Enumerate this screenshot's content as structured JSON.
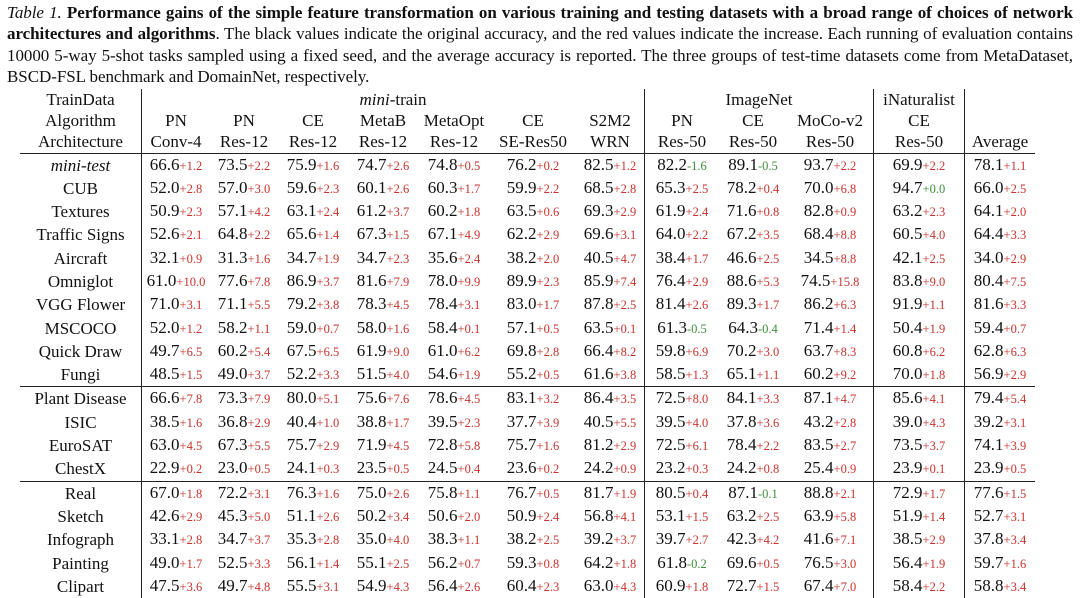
{
  "caption": {
    "label": "Table 1.",
    "bold": "Performance gains of the simple feature transformation on various training and testing datasets with a broad range of choices of network architectures and algorithms",
    "rest": ". The black values indicate the original accuracy, and the red values indicate the increase. Each running of evaluation contains 10000 5-way 5-shot tasks sampled using a fixed seed, and the average accuracy is reported. The three groups of test-time datasets come from MetaDataset, BSCD-FSL benchmark and DomainNet, respectively."
  },
  "header": {
    "row_labels": [
      "TrainData",
      "Algorithm",
      "Architecture"
    ],
    "groups": [
      {
        "name": "mini",
        "suffix": "-train",
        "span": 7
      },
      {
        "name": "ImageNet",
        "suffix": "",
        "span": 3
      },
      {
        "name": "iNaturalist",
        "suffix": "",
        "span": 1
      }
    ],
    "columns": [
      {
        "alg": "PN",
        "arch": "Conv-4"
      },
      {
        "alg": "PN",
        "arch": "Res-12"
      },
      {
        "alg": "CE",
        "arch": "Res-12"
      },
      {
        "alg": "MetaB",
        "arch": "Res-12"
      },
      {
        "alg": "MetaOpt",
        "arch": "Res-12"
      },
      {
        "alg": "CE",
        "arch": "SE-Res50"
      },
      {
        "alg": "S2M2",
        "arch": "WRN"
      },
      {
        "alg": "PN",
        "arch": "Res-50"
      },
      {
        "alg": "CE",
        "arch": "Res-50"
      },
      {
        "alg": "MoCo-v2",
        "arch": "Res-50"
      },
      {
        "alg": "CE",
        "arch": "Res-50"
      }
    ],
    "average_label": "Average"
  },
  "rows": [
    {
      "name": "mini-test",
      "italic": true,
      "vals": [
        [
          "66.6",
          "+1.2"
        ],
        [
          "73.5",
          "+2.2"
        ],
        [
          "75.9",
          "+1.6"
        ],
        [
          "74.7",
          "+2.6"
        ],
        [
          "74.8",
          "+0.5"
        ],
        [
          "76.2",
          "+0.2"
        ],
        [
          "82.5",
          "+1.2"
        ],
        [
          "82.2",
          "-1.6"
        ],
        [
          "89.1",
          "-0.5"
        ],
        [
          "93.7",
          "+2.2"
        ],
        [
          "69.9",
          "+2.2"
        ],
        [
          "78.1",
          "+1.1"
        ]
      ]
    },
    {
      "name": "CUB",
      "vals": [
        [
          "52.0",
          "+2.8"
        ],
        [
          "57.0",
          "+3.0"
        ],
        [
          "59.6",
          "+2.3"
        ],
        [
          "60.1",
          "+2.6"
        ],
        [
          "60.3",
          "+1.7"
        ],
        [
          "59.9",
          "+2.2"
        ],
        [
          "68.5",
          "+2.8"
        ],
        [
          "65.3",
          "+2.5"
        ],
        [
          "78.2",
          "+0.4"
        ],
        [
          "70.0",
          "+6.8"
        ],
        [
          "94.7",
          "+0.0"
        ],
        [
          "66.0",
          "+2.5"
        ]
      ]
    },
    {
      "name": "Textures",
      "vals": [
        [
          "50.9",
          "+2.3"
        ],
        [
          "57.1",
          "+4.2"
        ],
        [
          "63.1",
          "+2.4"
        ],
        [
          "61.2",
          "+3.7"
        ],
        [
          "60.2",
          "+1.8"
        ],
        [
          "63.5",
          "+0.6"
        ],
        [
          "69.3",
          "+2.9"
        ],
        [
          "61.9",
          "+2.4"
        ],
        [
          "71.6",
          "+0.8"
        ],
        [
          "82.8",
          "+0.9"
        ],
        [
          "63.2",
          "+2.3"
        ],
        [
          "64.1",
          "+2.0"
        ]
      ]
    },
    {
      "name": "Traffic Signs",
      "vals": [
        [
          "52.6",
          "+2.1"
        ],
        [
          "64.8",
          "+2.2"
        ],
        [
          "65.6",
          "+1.4"
        ],
        [
          "67.3",
          "+1.5"
        ],
        [
          "67.1",
          "+4.9"
        ],
        [
          "62.2",
          "+2.9"
        ],
        [
          "69.6",
          "+3.1"
        ],
        [
          "64.0",
          "+2.2"
        ],
        [
          "67.2",
          "+3.5"
        ],
        [
          "68.4",
          "+8.8"
        ],
        [
          "60.5",
          "+4.0"
        ],
        [
          "64.4",
          "+3.3"
        ]
      ]
    },
    {
      "name": "Aircraft",
      "vals": [
        [
          "32.1",
          "+0.9"
        ],
        [
          "31.3",
          "+1.6"
        ],
        [
          "34.7",
          "+1.9"
        ],
        [
          "34.7",
          "+2.3"
        ],
        [
          "35.6",
          "+2.4"
        ],
        [
          "38.2",
          "+2.0"
        ],
        [
          "40.5",
          "+4.7"
        ],
        [
          "38.4",
          "+1.7"
        ],
        [
          "46.6",
          "+2.5"
        ],
        [
          "34.5",
          "+8.8"
        ],
        [
          "42.1",
          "+2.5"
        ],
        [
          "34.0",
          "+2.9"
        ]
      ]
    },
    {
      "name": "Omniglot",
      "vals": [
        [
          "61.0",
          "+10.0"
        ],
        [
          "77.6",
          "+7.8"
        ],
        [
          "86.9",
          "+3.7"
        ],
        [
          "81.6",
          "+7.9"
        ],
        [
          "78.0",
          "+9.9"
        ],
        [
          "89.9",
          "+2.3"
        ],
        [
          "85.9",
          "+7.4"
        ],
        [
          "76.4",
          "+2.9"
        ],
        [
          "88.6",
          "+5.3"
        ],
        [
          "74.5",
          "+15.8"
        ],
        [
          "83.8",
          "+9.0"
        ],
        [
          "80.4",
          "+7.5"
        ]
      ]
    },
    {
      "name": "VGG Flower",
      "vals": [
        [
          "71.0",
          "+3.1"
        ],
        [
          "71.1",
          "+5.5"
        ],
        [
          "79.2",
          "+3.8"
        ],
        [
          "78.3",
          "+4.5"
        ],
        [
          "78.4",
          "+3.1"
        ],
        [
          "83.0",
          "+1.7"
        ],
        [
          "87.8",
          "+2.5"
        ],
        [
          "81.4",
          "+2.6"
        ],
        [
          "89.3",
          "+1.7"
        ],
        [
          "86.2",
          "+6.3"
        ],
        [
          "91.9",
          "+1.1"
        ],
        [
          "81.6",
          "+3.3"
        ]
      ]
    },
    {
      "name": "MSCOCO",
      "vals": [
        [
          "52.0",
          "+1.2"
        ],
        [
          "58.2",
          "+1.1"
        ],
        [
          "59.0",
          "+0.7"
        ],
        [
          "58.0",
          "+1.6"
        ],
        [
          "58.4",
          "+0.1"
        ],
        [
          "57.1",
          "+0.5"
        ],
        [
          "63.5",
          "+0.1"
        ],
        [
          "61.3",
          "-0.5"
        ],
        [
          "64.3",
          "-0.4"
        ],
        [
          "71.4",
          "+1.4"
        ],
        [
          "50.4",
          "+1.9"
        ],
        [
          "59.4",
          "+0.7"
        ]
      ]
    },
    {
      "name": "Quick Draw",
      "vals": [
        [
          "49.7",
          "+6.5"
        ],
        [
          "60.2",
          "+5.4"
        ],
        [
          "67.5",
          "+6.5"
        ],
        [
          "61.9",
          "+9.0"
        ],
        [
          "61.0",
          "+6.2"
        ],
        [
          "69.8",
          "+2.8"
        ],
        [
          "66.4",
          "+8.2"
        ],
        [
          "59.8",
          "+6.9"
        ],
        [
          "70.2",
          "+3.0"
        ],
        [
          "63.7",
          "+8.3"
        ],
        [
          "60.8",
          "+6.2"
        ],
        [
          "62.8",
          "+6.3"
        ]
      ]
    },
    {
      "name": "Fungi",
      "vals": [
        [
          "48.5",
          "+1.5"
        ],
        [
          "49.0",
          "+3.7"
        ],
        [
          "52.2",
          "+3.3"
        ],
        [
          "51.5",
          "+4.0"
        ],
        [
          "54.6",
          "+1.9"
        ],
        [
          "55.2",
          "+0.5"
        ],
        [
          "61.6",
          "+3.8"
        ],
        [
          "58.5",
          "+1.3"
        ],
        [
          "65.1",
          "+1.1"
        ],
        [
          "60.2",
          "+9.2"
        ],
        [
          "70.0",
          "+1.8"
        ],
        [
          "56.9",
          "+2.9"
        ]
      ]
    },
    {
      "name": "Plant Disease",
      "group_start": true,
      "vals": [
        [
          "66.6",
          "+7.8"
        ],
        [
          "73.3",
          "+7.9"
        ],
        [
          "80.0",
          "+5.1"
        ],
        [
          "75.6",
          "+7.6"
        ],
        [
          "78.6",
          "+4.5"
        ],
        [
          "83.1",
          "+3.2"
        ],
        [
          "86.4",
          "+3.5"
        ],
        [
          "72.5",
          "+8.0"
        ],
        [
          "84.1",
          "+3.3"
        ],
        [
          "87.1",
          "+4.7"
        ],
        [
          "85.6",
          "+4.1"
        ],
        [
          "79.4",
          "+5.4"
        ]
      ]
    },
    {
      "name": "ISIC",
      "vals": [
        [
          "38.5",
          "+1.6"
        ],
        [
          "36.8",
          "+2.9"
        ],
        [
          "40.4",
          "+1.0"
        ],
        [
          "38.8",
          "+1.7"
        ],
        [
          "39.5",
          "+2.3"
        ],
        [
          "37.7",
          "+3.9"
        ],
        [
          "40.5",
          "+5.5"
        ],
        [
          "39.5",
          "+4.0"
        ],
        [
          "37.8",
          "+3.6"
        ],
        [
          "43.2",
          "+2.8"
        ],
        [
          "39.0",
          "+4.3"
        ],
        [
          "39.2",
          "+3.1"
        ]
      ]
    },
    {
      "name": "EuroSAT",
      "vals": [
        [
          "63.0",
          "+4.5"
        ],
        [
          "67.3",
          "+5.5"
        ],
        [
          "75.7",
          "+2.9"
        ],
        [
          "71.9",
          "+4.5"
        ],
        [
          "72.8",
          "+5.8"
        ],
        [
          "75.7",
          "+1.6"
        ],
        [
          "81.2",
          "+2.9"
        ],
        [
          "72.5",
          "+6.1"
        ],
        [
          "78.4",
          "+2.2"
        ],
        [
          "83.5",
          "+2.7"
        ],
        [
          "73.5",
          "+3.7"
        ],
        [
          "74.1",
          "+3.9"
        ]
      ]
    },
    {
      "name": "ChestX",
      "vals": [
        [
          "22.9",
          "+0.2"
        ],
        [
          "23.0",
          "+0.5"
        ],
        [
          "24.1",
          "+0.3"
        ],
        [
          "23.5",
          "+0.5"
        ],
        [
          "24.5",
          "+0.4"
        ],
        [
          "23.6",
          "+0.2"
        ],
        [
          "24.2",
          "+0.9"
        ],
        [
          "23.2",
          "+0.3"
        ],
        [
          "24.2",
          "+0.8"
        ],
        [
          "25.4",
          "+0.9"
        ],
        [
          "23.9",
          "+0.1"
        ],
        [
          "23.9",
          "+0.5"
        ]
      ]
    },
    {
      "name": "Real",
      "group_start": true,
      "vals": [
        [
          "67.0",
          "+1.8"
        ],
        [
          "72.2",
          "+3.1"
        ],
        [
          "76.3",
          "+1.6"
        ],
        [
          "75.0",
          "+2.6"
        ],
        [
          "75.8",
          "+1.1"
        ],
        [
          "76.7",
          "+0.5"
        ],
        [
          "81.7",
          "+1.9"
        ],
        [
          "80.5",
          "+0.4"
        ],
        [
          "87.1",
          "-0.1"
        ],
        [
          "88.8",
          "+2.1"
        ],
        [
          "72.9",
          "+1.7"
        ],
        [
          "77.6",
          "+1.5"
        ]
      ]
    },
    {
      "name": "Sketch",
      "vals": [
        [
          "42.6",
          "+2.9"
        ],
        [
          "45.3",
          "+5.0"
        ],
        [
          "51.1",
          "+2.6"
        ],
        [
          "50.2",
          "+3.4"
        ],
        [
          "50.6",
          "+2.0"
        ],
        [
          "50.9",
          "+2.4"
        ],
        [
          "56.8",
          "+4.1"
        ],
        [
          "53.1",
          "+1.5"
        ],
        [
          "63.2",
          "+2.5"
        ],
        [
          "63.9",
          "+5.8"
        ],
        [
          "51.9",
          "+1.4"
        ],
        [
          "52.7",
          "+3.1"
        ]
      ]
    },
    {
      "name": "Infograph",
      "vals": [
        [
          "33.1",
          "+2.8"
        ],
        [
          "34.7",
          "+3.7"
        ],
        [
          "35.3",
          "+2.8"
        ],
        [
          "35.0",
          "+4.0"
        ],
        [
          "38.3",
          "+1.1"
        ],
        [
          "38.2",
          "+2.5"
        ],
        [
          "39.2",
          "+3.7"
        ],
        [
          "39.7",
          "+2.7"
        ],
        [
          "42.3",
          "+4.2"
        ],
        [
          "41.6",
          "+7.1"
        ],
        [
          "38.5",
          "+2.9"
        ],
        [
          "37.8",
          "+3.4"
        ]
      ]
    },
    {
      "name": "Painting",
      "vals": [
        [
          "49.0",
          "+1.7"
        ],
        [
          "52.5",
          "+3.3"
        ],
        [
          "56.1",
          "+1.4"
        ],
        [
          "55.1",
          "+2.5"
        ],
        [
          "56.2",
          "+0.7"
        ],
        [
          "59.3",
          "+0.8"
        ],
        [
          "64.2",
          "+1.8"
        ],
        [
          "61.8",
          "-0.2"
        ],
        [
          "69.6",
          "+0.5"
        ],
        [
          "76.5",
          "+3.0"
        ],
        [
          "56.4",
          "+1.9"
        ],
        [
          "59.7",
          "+1.6"
        ]
      ]
    },
    {
      "name": "Clipart",
      "vals": [
        [
          "47.5",
          "+3.6"
        ],
        [
          "49.7",
          "+4.8"
        ],
        [
          "55.5",
          "+3.1"
        ],
        [
          "54.9",
          "+4.3"
        ],
        [
          "56.4",
          "+2.6"
        ],
        [
          "60.4",
          "+2.3"
        ],
        [
          "63.0",
          "+4.3"
        ],
        [
          "60.9",
          "+1.8"
        ],
        [
          "72.7",
          "+1.5"
        ],
        [
          "67.4",
          "+7.0"
        ],
        [
          "58.4",
          "+2.2"
        ],
        [
          "58.8",
          "+3.4"
        ]
      ]
    }
  ],
  "colors": {
    "increase": "#c8322c",
    "decrease": "#3d8c3d",
    "text": "#111111"
  }
}
